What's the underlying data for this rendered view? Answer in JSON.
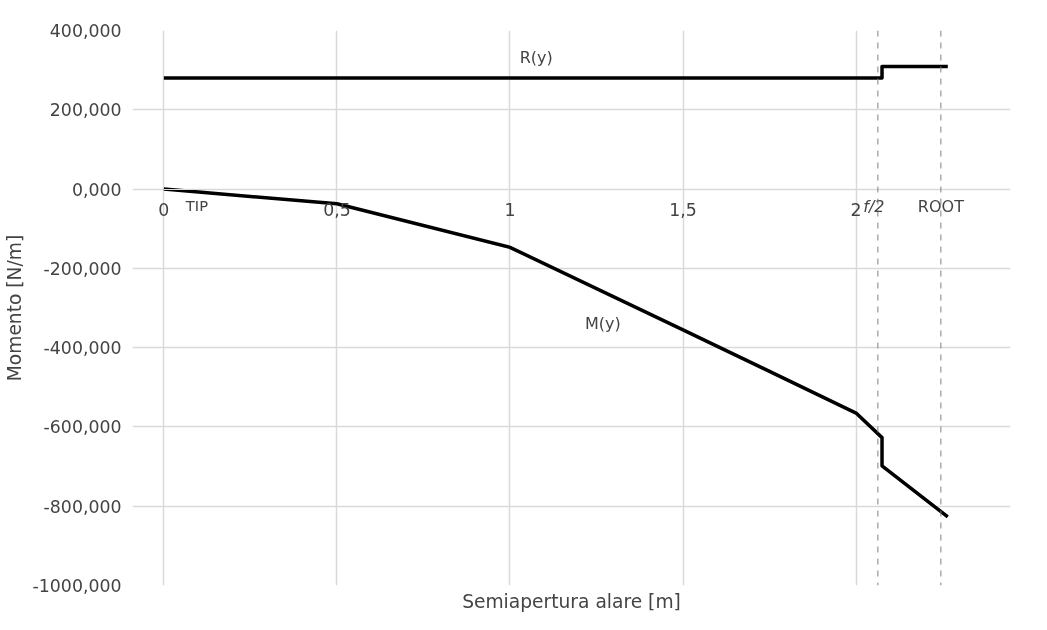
{
  "chart_data": {
    "type": "line",
    "xlabel": "Semiapertura alare [m]",
    "ylabel": "Momento [N/m]",
    "xlim": [
      0,
      2.265
    ],
    "ylim": [
      -1000,
      400
    ],
    "xticks": [
      {
        "value": 0,
        "label": "0"
      },
      {
        "value": 0.5,
        "label": "0,5"
      },
      {
        "value": 1,
        "label": "1"
      },
      {
        "value": 1.5,
        "label": "1,5"
      },
      {
        "value": 2,
        "label": "2"
      }
    ],
    "yticks": [
      {
        "value": 400,
        "label": "400,000"
      },
      {
        "value": 200,
        "label": "200,000"
      },
      {
        "value": 0,
        "label": "0,000"
      },
      {
        "value": -200,
        "label": "-200,000"
      },
      {
        "value": -400,
        "label": "-400,000"
      },
      {
        "value": -600,
        "label": "-600,000"
      },
      {
        "value": -800,
        "label": "-800,000"
      },
      {
        "value": -1000,
        "label": "-1000,000"
      }
    ],
    "grid": true,
    "legend": false,
    "marker": "none",
    "line_style": "solid",
    "series": [
      {
        "name": "R(y)",
        "color": "#000000",
        "x": [
          0,
          2.075,
          2.075,
          2.265
        ],
        "values": [
          280,
          280,
          309,
          309
        ]
      },
      {
        "name": "M(y)",
        "color": "#000000",
        "x": [
          0,
          0.5,
          1,
          1.5,
          2,
          2.075,
          2.075,
          2.265
        ],
        "values": [
          0,
          -37,
          -147,
          -355,
          -565,
          -627,
          -698,
          -827
        ]
      }
    ],
    "ref_lines": [
      {
        "axis": "x",
        "value": 2.063,
        "label": "f/2",
        "color": "#808080",
        "line_style": "dashed"
      },
      {
        "axis": "x",
        "value": 2.245,
        "label": "ROOT",
        "color": "#808080",
        "line_style": "dashed"
      }
    ],
    "annotations": [
      {
        "text": "TIP",
        "x": 0,
        "y": 0
      }
    ]
  }
}
